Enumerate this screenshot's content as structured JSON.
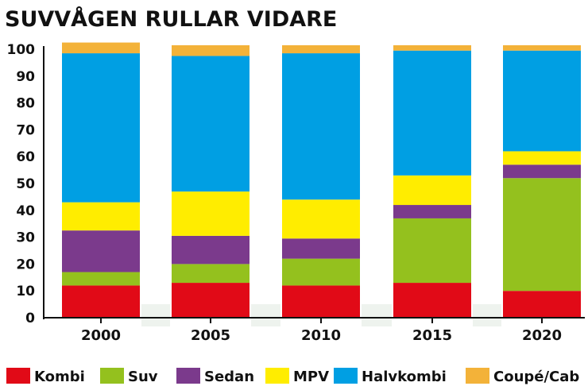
{
  "chart_data": {
    "type": "bar",
    "stacked": true,
    "title": "SUVVÅGEN RULLAR VIDARE",
    "xlabel": "",
    "ylabel": "",
    "ylim": [
      0,
      100
    ],
    "yticks": [
      0,
      10,
      20,
      30,
      40,
      50,
      60,
      70,
      80,
      90,
      100
    ],
    "grid": false,
    "legend_position": "bottom",
    "categories": [
      "2000",
      "2005",
      "2010",
      "2015",
      "2020"
    ],
    "series": [
      {
        "name": "Kombi",
        "color": "#e10a17",
        "values": [
          12,
          13,
          12,
          13,
          10
        ]
      },
      {
        "name": "Suv",
        "color": "#94c11e",
        "values": [
          5,
          7,
          10,
          24,
          42
        ]
      },
      {
        "name": "Sedan",
        "color": "#7b3a8c",
        "values": [
          15.5,
          10.5,
          7.5,
          5,
          5
        ]
      },
      {
        "name": "MPV",
        "color": "#ffed00",
        "values": [
          10.5,
          16.5,
          14.5,
          11,
          5
        ]
      },
      {
        "name": "Halvkombi",
        "color": "#009fe3",
        "values": [
          55.5,
          50.5,
          54.5,
          46.5,
          37.5
        ]
      },
      {
        "name": "Coupé/Cab",
        "color": "#f3b239",
        "values": [
          4,
          4,
          3,
          2,
          2
        ]
      }
    ]
  }
}
